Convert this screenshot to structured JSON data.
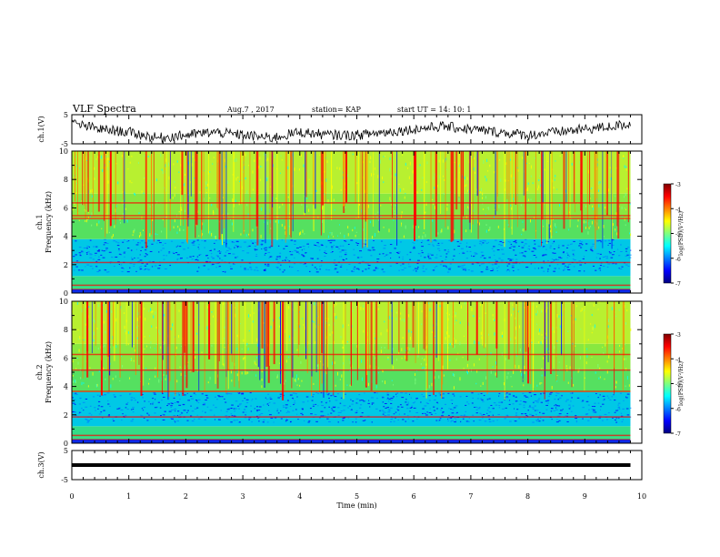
{
  "header": {
    "title": "VLF Spectra",
    "date": "Aug.7 , 2017",
    "station": "station= KAP",
    "start": "start UT = 14: 10: 1"
  },
  "colors": {
    "colormap": [
      "#00007f",
      "#0000ff",
      "#0080ff",
      "#00ffff",
      "#7fff7f",
      "#ffff00",
      "#ff8000",
      "#ff0000",
      "#7f0000"
    ]
  },
  "chart_data": [
    {
      "type": "line",
      "panel": "ch1-waveform",
      "ylabel": "ch.1(V)",
      "ylim": [
        -5,
        5
      ],
      "yticks": [
        "5",
        "-5"
      ],
      "x": [
        0,
        0.5,
        1,
        1.5,
        2,
        2.5,
        3,
        3.5,
        4,
        4.5,
        5,
        5.5,
        6,
        6.5,
        7,
        7.5,
        8,
        8.5,
        9,
        9.5,
        9.8
      ],
      "y": [
        2,
        0,
        -1,
        -3,
        -2,
        -1,
        -2,
        -3,
        -1,
        -2,
        -2,
        -1,
        0,
        1,
        0,
        -1,
        -2,
        -1,
        0,
        1,
        2
      ]
    },
    {
      "type": "heatmap",
      "panel": "ch1-spectrogram",
      "ylabel_top": "ch.1",
      "ylabel": "Frequency (kHz)",
      "ylim": [
        0,
        10
      ],
      "yticks": [
        "0",
        "2",
        "4",
        "6",
        "8",
        "10"
      ],
      "xlim": [
        0,
        10
      ],
      "colorbar": {
        "label": "log(PSD)(V²/Hz)",
        "range": [
          -7,
          -3
        ],
        "ticks": [
          "-3",
          "-4",
          "-5",
          "-6",
          "-7"
        ]
      },
      "low_band_khz": [
        1.5,
        3.8
      ],
      "line_freqs_khz": [
        0.3,
        0.6,
        2.2,
        5.3,
        5.5,
        6.4
      ]
    },
    {
      "type": "heatmap",
      "panel": "ch2-spectrogram",
      "ylabel_top": "ch.2",
      "ylabel": "Frequency (kHz)",
      "ylim": [
        0,
        10
      ],
      "yticks": [
        "0",
        "2",
        "4",
        "6",
        "8",
        "10"
      ],
      "xlim": [
        0,
        10
      ],
      "colorbar": {
        "label": "log(PSD)(V²/Hz)",
        "range": [
          -7,
          -3
        ],
        "ticks": [
          "-3",
          "-4",
          "-5",
          "-6",
          "-7"
        ]
      },
      "low_band_khz": [
        1.5,
        3.6
      ],
      "line_freqs_khz": [
        0.3,
        0.6,
        1.9,
        3.7,
        5.2,
        6.3
      ]
    },
    {
      "type": "line",
      "panel": "ch3-waveform",
      "ylabel": "ch.3(V)",
      "ylim": [
        -5,
        5
      ],
      "yticks": [
        "5",
        "-5"
      ],
      "x": [
        0,
        9.8
      ],
      "y": [
        0,
        0
      ]
    }
  ],
  "xaxis": {
    "label": "Time (min)",
    "range": [
      0,
      10
    ],
    "ticks": [
      "0",
      "1",
      "2",
      "3",
      "4",
      "5",
      "6",
      "7",
      "8",
      "9",
      "10"
    ]
  }
}
